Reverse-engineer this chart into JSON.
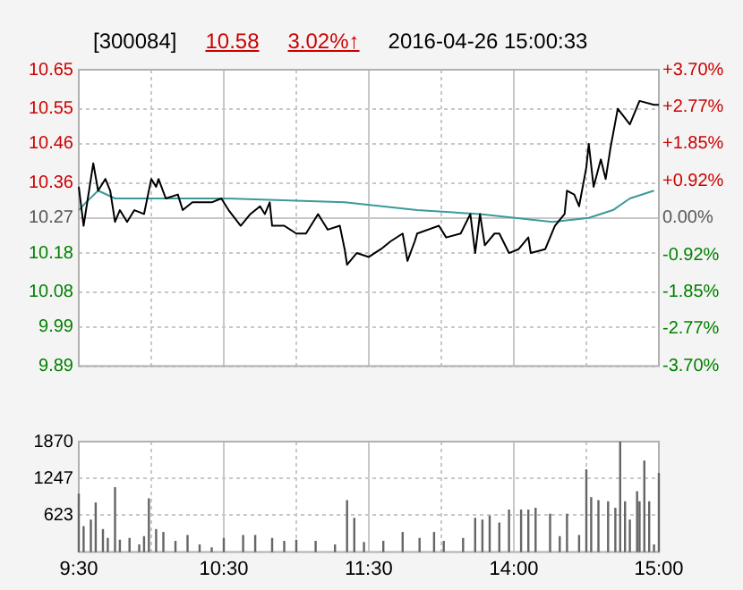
{
  "chart_data": [
    {
      "type": "line",
      "title": "[300084]",
      "annotations": [
        "10.58",
        "3.02%↑",
        "2016-04-26 15:00:33"
      ],
      "categories": [
        null,
        null,
        null,
        null,
        null,
        null,
        null,
        null,
        null,
        null,
        null,
        null,
        null,
        null,
        null,
        null,
        null,
        null,
        null,
        null,
        null,
        null,
        null,
        null,
        null,
        null,
        null,
        null,
        null,
        null,
        null,
        null,
        null,
        null,
        null,
        null,
        null,
        null,
        null,
        null,
        null,
        null,
        null,
        null,
        null,
        null,
        null,
        null,
        null,
        null,
        null,
        null,
        null,
        null,
        null,
        null,
        null,
        null,
        null,
        null,
        null,
        null,
        null,
        null,
        null,
        null,
        null,
        null,
        null,
        null,
        null,
        null,
        null,
        null,
        null,
        null,
        null,
        null,
        null,
        null,
        null,
        null,
        null,
        null,
        null,
        null,
        null,
        null,
        null,
        null,
        null,
        null,
        null,
        null,
        null,
        null,
        null,
        null,
        null,
        null,
        null,
        null,
        null,
        null,
        null,
        null,
        null,
        null,
        null,
        null,
        null,
        null,
        null,
        null,
        null,
        null,
        null,
        null,
        null,
        null,
        null,
        null,
        null,
        null,
        null,
        null,
        null,
        null,
        null,
        null,
        null,
        null,
        null,
        null,
        null,
        null,
        null,
        null,
        null,
        null,
        null,
        null,
        null,
        null,
        null,
        null,
        null,
        null,
        null,
        null,
        null,
        null,
        null,
        null,
        null,
        null,
        null,
        null,
        null,
        null,
        null,
        null,
        null,
        null,
        null,
        null,
        null,
        null,
        null,
        null,
        null,
        null,
        null,
        null,
        null,
        null,
        null,
        null,
        null,
        null,
        null,
        null,
        null,
        null,
        null,
        null,
        null,
        null,
        null,
        null,
        null,
        null,
        null,
        null,
        null,
        null,
        null,
        null,
        null,
        null,
        null,
        null,
        null,
        null,
        null,
        null,
        null,
        null,
        null,
        null,
        null,
        null,
        null,
        null,
        null,
        null,
        null,
        null,
        null,
        null,
        null,
        null,
        null,
        null,
        null,
        null,
        null,
        null,
        null,
        null,
        null,
        null,
        null,
        null,
        null,
        null,
        null,
        null,
        null,
        null,
        null
      ],
      "ylim": [
        9.89,
        10.65
      ],
      "yticks": [
        9.89,
        9.99,
        10.08,
        10.18,
        10.27,
        10.36,
        10.46,
        10.55,
        10.65
      ],
      "y2lim": [
        -3.7,
        3.7
      ],
      "y2ticks": [
        {
          "value": -3.7,
          "label": "-3.70%"
        },
        {
          "value": -2.77,
          "label": "-2.77%"
        },
        {
          "value": -1.85,
          "label": "-1.85%"
        },
        {
          "value": -0.92,
          "label": "-0.92%"
        },
        {
          "value": 0,
          "label": "0.00%"
        },
        {
          "value": 0.92,
          "label": "+0.92%"
        },
        {
          "value": 1.85,
          "label": "+1.85%"
        },
        {
          "value": 2.77,
          "label": "+2.77%"
        },
        {
          "value": 3.7,
          "label": "+3.70%"
        }
      ],
      "grid": true,
      "legend": false,
      "marker": "none",
      "series": [
        {
          "color": "#000000",
          "values": [
            10.35,
            null,
            10.25,
            null,
            null,
            null,
            10.41,
            null,
            10.34,
            null,
            null,
            10.37,
            null,
            10.34,
            null,
            10.26,
            null,
            10.29,
            null,
            null,
            10.26,
            null,
            null,
            10.29,
            null,
            null,
            null,
            10.28,
            null,
            null,
            10.37,
            null,
            10.35,
            10.37,
            null,
            null,
            10.32,
            null,
            null,
            null,
            null,
            10.33,
            null,
            10.29,
            null,
            null,
            null,
            10.31,
            null,
            null,
            null,
            null,
            null,
            null,
            null,
            10.31,
            null,
            null,
            null,
            10.32,
            null,
            null,
            10.29,
            null,
            null,
            null,
            null,
            10.25,
            null,
            null,
            null,
            10.28,
            null,
            null,
            null,
            10.3,
            null,
            10.28,
            null,
            10.31,
            10.25,
            null,
            null,
            null,
            null,
            10.25,
            null,
            null,
            null,
            null,
            10.23,
            null,
            null,
            null,
            10.23,
            null,
            null,
            null,
            null,
            10.28,
            null,
            null,
            null,
            10.24,
            null,
            null,
            null,
            null,
            10.25,
            null,
            10.19,
            10.15,
            null,
            null,
            null,
            10.18,
            null,
            null,
            null,
            null,
            10.17,
            null,
            null,
            null,
            null,
            10.19,
            null,
            null,
            null,
            10.21,
            null,
            null,
            null,
            null,
            10.23,
            null,
            10.16,
            null,
            null,
            10.21,
            10.23,
            null,
            null,
            null,
            null,
            null,
            null,
            null,
            null,
            10.25,
            null,
            null,
            10.22,
            null,
            null,
            null,
            null,
            null,
            10.23,
            null,
            null,
            null,
            10.28,
            null,
            10.18,
            null,
            10.28,
            null,
            10.2,
            null,
            null,
            null,
            10.23,
            null,
            10.23,
            null,
            null,
            null,
            10.18,
            null,
            null,
            null,
            10.19,
            null,
            null,
            null,
            10.22,
            10.18,
            null,
            null,
            null,
            null,
            null,
            10.19,
            null,
            null,
            null,
            10.25,
            null,
            null,
            null,
            10.28,
            10.34,
            null,
            null,
            10.33,
            null,
            10.3,
            null,
            null,
            10.4,
            10.46,
            null,
            10.35,
            null,
            null,
            10.42,
            null,
            10.37,
            null,
            10.45,
            null,
            null,
            10.55,
            null,
            null,
            null,
            null,
            10.51,
            null,
            null,
            null,
            10.57,
            null,
            null,
            null,
            null,
            null,
            10.56,
            null,
            10.56
          ]
        },
        {
          "color": "#3a9a9a",
          "values": [
            10.29,
            null,
            null,
            10.31,
            null,
            null,
            null,
            null,
            10.34,
            null,
            null,
            null,
            null,
            null,
            null,
            10.32,
            null,
            null,
            null,
            null,
            null,
            null,
            null,
            null,
            null,
            null,
            null,
            null,
            null,
            null,
            null,
            null,
            null,
            null,
            null,
            null,
            null,
            null,
            null,
            null,
            10.32,
            null,
            null,
            null,
            null,
            null,
            null,
            null,
            null,
            null,
            null,
            null,
            null,
            null,
            null,
            null,
            null,
            null,
            null,
            null,
            10.32,
            null,
            null,
            null,
            null,
            null,
            null,
            null,
            null,
            null,
            null,
            null,
            null,
            null,
            null,
            null,
            null,
            null,
            null,
            null,
            null,
            null,
            null,
            null,
            null,
            null,
            null,
            null,
            null,
            null,
            null,
            null,
            null,
            null,
            null,
            null,
            null,
            null,
            null,
            null,
            null,
            null,
            null,
            null,
            null,
            null,
            null,
            null,
            null,
            null,
            10.31,
            null,
            null,
            null,
            null,
            null,
            null,
            null,
            null,
            null,
            null,
            null,
            null,
            null,
            null,
            null,
            null,
            null,
            null,
            null,
            null,
            null,
            null,
            null,
            null,
            null,
            null,
            null,
            null,
            null,
            10.29,
            null,
            null,
            null,
            null,
            null,
            null,
            null,
            null,
            null,
            null,
            null,
            null,
            null,
            null,
            null,
            null,
            null,
            null,
            null,
            null,
            null,
            null,
            null,
            null,
            null,
            10.28,
            null,
            null,
            null,
            null,
            null,
            null,
            null,
            null,
            null,
            null,
            null,
            null,
            null,
            null,
            null,
            null,
            null,
            null,
            null,
            null,
            null,
            null,
            null,
            null,
            null,
            null,
            null,
            null,
            null,
            10.26,
            null,
            null,
            null,
            null,
            null,
            null,
            null,
            null,
            null,
            null,
            null,
            null,
            null,
            null,
            10.27,
            null,
            null,
            null,
            null,
            null,
            null,
            null,
            null,
            null,
            10.29,
            null,
            null,
            null,
            null,
            null,
            null,
            10.32,
            null,
            null,
            null,
            null,
            null,
            null,
            null,
            null,
            null,
            10.34,
            null,
            null
          ]
        }
      ]
    },
    {
      "type": "bar",
      "categories": [
        "9:30",
        null,
        null,
        null,
        null,
        null,
        null,
        null,
        null,
        null,
        null,
        null,
        null,
        null,
        null,
        null,
        null,
        null,
        null,
        null,
        null,
        null,
        null,
        null,
        null,
        null,
        null,
        null,
        null,
        null,
        null,
        null,
        null,
        null,
        null,
        null,
        null,
        null,
        null,
        null,
        null,
        null,
        null,
        null,
        null,
        null,
        null,
        null,
        null,
        null,
        null,
        null,
        null,
        null,
        null,
        null,
        null,
        null,
        null,
        null,
        "10:30",
        null,
        null,
        null,
        null,
        null,
        null,
        null,
        null,
        null,
        null,
        null,
        null,
        null,
        null,
        null,
        null,
        null,
        null,
        null,
        null,
        null,
        null,
        null,
        null,
        null,
        null,
        null,
        null,
        null,
        null,
        null,
        null,
        null,
        null,
        null,
        null,
        null,
        null,
        null,
        null,
        null,
        null,
        null,
        null,
        null,
        null,
        null,
        null,
        null,
        null,
        null,
        null,
        null,
        null,
        null,
        null,
        null,
        null,
        null,
        "11:30",
        null,
        null,
        null,
        null,
        null,
        null,
        null,
        null,
        null,
        null,
        null,
        null,
        null,
        null,
        null,
        null,
        null,
        null,
        null,
        null,
        null,
        null,
        null,
        null,
        null,
        null,
        null,
        null,
        null,
        null,
        null,
        null,
        null,
        null,
        null,
        null,
        null,
        null,
        null,
        null,
        null,
        null,
        null,
        null,
        null,
        null,
        null,
        null,
        null,
        null,
        null,
        null,
        null,
        null,
        null,
        null,
        null,
        null,
        null,
        "14:00",
        null,
        null,
        null,
        null,
        null,
        null,
        null,
        null,
        null,
        null,
        null,
        null,
        null,
        null,
        null,
        null,
        null,
        null,
        null,
        null,
        null,
        null,
        null,
        null,
        null,
        null,
        null,
        null,
        null,
        null,
        null,
        null,
        null,
        null,
        null,
        null,
        null,
        null,
        null,
        null,
        null,
        null,
        null,
        null,
        null,
        null,
        null,
        null,
        null,
        null,
        null,
        null,
        null,
        null,
        null,
        null,
        null,
        null,
        null,
        "15:00"
      ],
      "ylim": [
        0,
        1870
      ],
      "yticks": [
        623,
        1247,
        1870
      ],
      "grid": true,
      "legend": false,
      "series": [
        {
          "color": "#666666",
          "values": [
            990,
            null,
            440,
            null,
            null,
            550,
            null,
            840,
            null,
            null,
            390,
            null,
            240,
            null,
            null,
            1100,
            null,
            210,
            null,
            null,
            null,
            240,
            null,
            null,
            null,
            130,
            null,
            270,
            null,
            910,
            null,
            null,
            390,
            null,
            null,
            340,
            null,
            null,
            null,
            null,
            190,
            null,
            null,
            null,
            null,
            290,
            null,
            null,
            null,
            null,
            130,
            null,
            null,
            null,
            null,
            80,
            null,
            null,
            null,
            null,
            240,
            null,
            null,
            null,
            null,
            null,
            null,
            null,
            290,
            null,
            null,
            null,
            null,
            290,
            null,
            null,
            null,
            null,
            null,
            null,
            240,
            null,
            null,
            null,
            null,
            190,
            null,
            null,
            null,
            null,
            210,
            null,
            null,
            null,
            null,
            null,
            null,
            null,
            190,
            null,
            null,
            null,
            null,
            null,
            null,
            null,
            130,
            null,
            null,
            null,
            null,
            880,
            null,
            null,
            580,
            null,
            null,
            null,
            170,
            null,
            null,
            null,
            null,
            null,
            null,
            null,
            190,
            null,
            null,
            null,
            null,
            null,
            null,
            null,
            340,
            null,
            null,
            null,
            null,
            null,
            null,
            240,
            null,
            null,
            null,
            null,
            null,
            340,
            null,
            null,
            null,
            190,
            null,
            null,
            null,
            null,
            null,
            null,
            null,
            240,
            null,
            null,
            null,
            null,
            580,
            null,
            null,
            550,
            null,
            null,
            620,
            null,
            null,
            null,
            500,
            null,
            null,
            null,
            720,
            null,
            null,
            null,
            null,
            720,
            null,
            null,
            720,
            null,
            null,
            750,
            null,
            null,
            null,
            null,
            null,
            650,
            null,
            null,
            null,
            270,
            null,
            null,
            650,
            null,
            null,
            null,
            null,
            290,
            null,
            null,
            1400,
            null,
            930,
            null,
            null,
            880,
            null,
            null,
            null,
            860,
            null,
            null,
            750,
            null,
            1870,
            null,
            860,
            null,
            550,
            null,
            null,
            1030,
            860,
            null,
            1550,
            null,
            860,
            null,
            130,
            null,
            1340
          ]
        }
      ]
    }
  ]
}
